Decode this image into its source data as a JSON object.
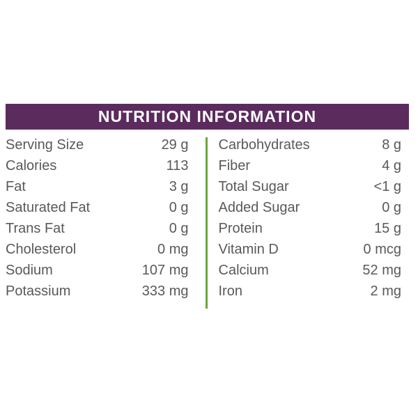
{
  "header": {
    "title": "NUTRITION INFORMATION"
  },
  "colors": {
    "header_bg": "#5B2B5E",
    "header_text": "#FFFFFF",
    "divider_green": "#6CA53E",
    "text_gray": "#595959",
    "background": "#FFFFFF"
  },
  "table": {
    "left": [
      {
        "label": "Serving Size",
        "value": "29 g"
      },
      {
        "label": "Calories",
        "value": "113"
      },
      {
        "label": "Fat",
        "value": "3 g"
      },
      {
        "label": "Saturated Fat",
        "value": "0 g"
      },
      {
        "label": "Trans Fat",
        "value": "0 g"
      },
      {
        "label": "Cholesterol",
        "value": "0 mg"
      },
      {
        "label": "Sodium",
        "value": "107 mg"
      },
      {
        "label": "Potassium",
        "value": "333 mg"
      }
    ],
    "right": [
      {
        "label": "Carbohydrates",
        "value": "8 g"
      },
      {
        "label": "Fiber",
        "value": "4 g"
      },
      {
        "label": "Total Sugar",
        "value": "<1 g"
      },
      {
        "label": "Added Sugar",
        "value": "0 g"
      },
      {
        "label": "Protein",
        "value": "15 g"
      },
      {
        "label": "Vitamin D",
        "value": "0 mcg"
      },
      {
        "label": "Calcium",
        "value": "52 mg"
      },
      {
        "label": "Iron",
        "value": "2 mg"
      }
    ]
  }
}
